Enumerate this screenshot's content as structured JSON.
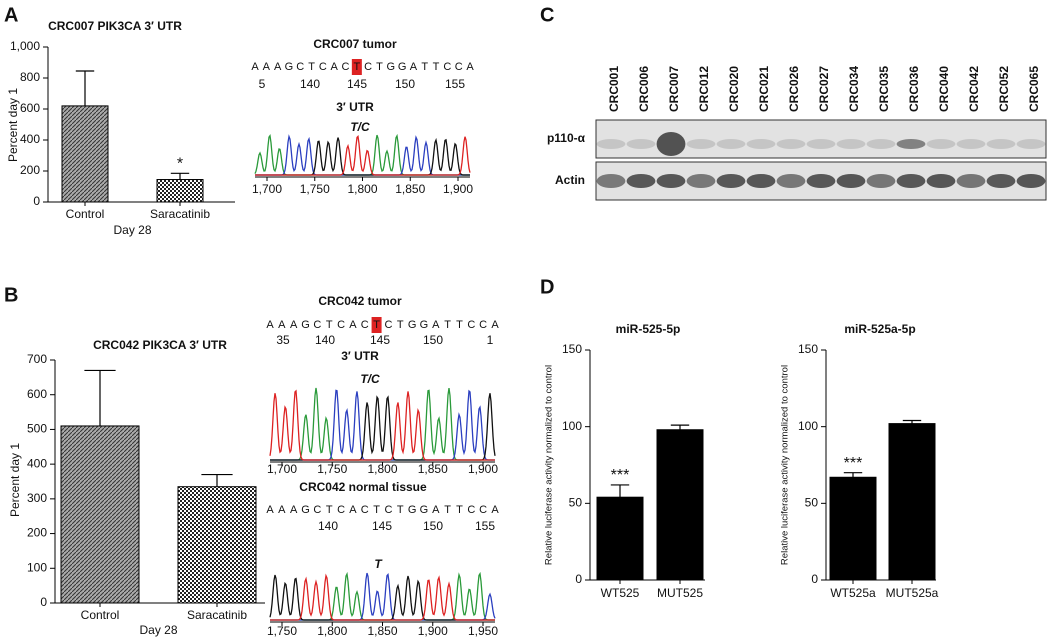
{
  "panels": [
    "A",
    "B",
    "C",
    "D"
  ],
  "chart_data": [
    {
      "type": "bar",
      "title": "CRC007 PIK3CA 3′ UTR",
      "y_label": "Percent day 1",
      "x_label": "Day 28",
      "categories": [
        "Control",
        "Saracatinib"
      ],
      "values": [
        620,
        145
      ],
      "errors": [
        225,
        40
      ],
      "color": "#000000",
      "annotation": "*",
      "ylim": [
        0,
        1000
      ],
      "yticks": [
        0,
        200,
        400,
        600,
        800,
        {
          "value": 1000,
          "label": "1,000"
        }
      ]
    },
    {
      "type": "bar",
      "title": "CRC042 PIK3CA 3′ UTR",
      "y_label": "Percent day 1",
      "x_label": "Day 28",
      "categories": [
        "Control",
        "Saracatinib"
      ],
      "values": [
        510,
        335
      ],
      "errors": [
        160,
        35
      ],
      "color": "#000000",
      "ylim": [
        0,
        700
      ],
      "yticks": [
        0,
        100,
        200,
        300,
        400,
        500,
        600,
        700
      ]
    },
    {
      "type": "bar",
      "title": "miR-525-5p",
      "y_label": "Relative luciferase activity normalized to control",
      "categories": [
        "WT525",
        "MUT525"
      ],
      "values": [
        54,
        98
      ],
      "errors": [
        8,
        3
      ],
      "color": "#000000",
      "annotation": "***",
      "ylim": [
        0,
        150
      ],
      "yticks": [
        0,
        50,
        100,
        150
      ]
    },
    {
      "type": "bar",
      "title": "miR-525a-5p",
      "y_label": "Relative luciferase activity normalized to control",
      "categories": [
        "WT525a",
        "MUT525a"
      ],
      "values": [
        67,
        102
      ],
      "errors": [
        3,
        2
      ],
      "color": "#000000",
      "annotation": "***",
      "ylim": [
        0,
        150
      ],
      "yticks": [
        0,
        50,
        100,
        150
      ]
    }
  ],
  "sequencing": [
    {
      "title": "CRC007 tumor",
      "bases": [
        "A",
        "A",
        "A",
        "G",
        "C",
        "T",
        "C",
        "A",
        "C",
        "T",
        "C",
        "T",
        "G",
        "G",
        "A",
        "T",
        "T",
        "C",
        "C",
        "A"
      ],
      "ruler": [
        5,
        140,
        145,
        150,
        155
      ],
      "trace_label": "3′ UTR",
      "call": "T/C",
      "axis": [
        {
          "value": 1700,
          "label": "1,700"
        },
        {
          "value": 1750,
          "label": "1,750"
        },
        {
          "value": 1800,
          "label": "1,800"
        },
        {
          "value": 1850,
          "label": "1,850"
        },
        {
          "value": 1900,
          "label": "1,900"
        }
      ]
    },
    {
      "title": "CRC042 tumor",
      "bases": [
        "A",
        "A",
        "A",
        "G",
        "C",
        "T",
        "C",
        "A",
        "C",
        "T",
        "C",
        "T",
        "G",
        "G",
        "A",
        "T",
        "T",
        "C",
        "C",
        "A"
      ],
      "ruler": [
        35,
        140,
        145,
        150,
        1
      ],
      "trace_label": "3′ UTR",
      "call": "T/C",
      "axis": [
        {
          "value": 1700,
          "label": "1,700"
        },
        {
          "value": 1750,
          "label": "1,750"
        },
        {
          "value": 1800,
          "label": "1,800"
        },
        {
          "value": 1850,
          "label": "1,850"
        },
        {
          "value": 1900,
          "label": "1,900"
        }
      ]
    },
    {
      "title": "CRC042 normal tissue",
      "bases": [
        "A",
        "A",
        "A",
        "G",
        "C",
        "T",
        "C",
        "A",
        "C",
        "T",
        "C",
        "T",
        "G",
        "G",
        "A",
        "T",
        "T",
        "C",
        "C",
        "A"
      ],
      "ruler": [
        140,
        145,
        150,
        155
      ],
      "call": "T",
      "axis": [
        {
          "value": 1750,
          "label": "1,750"
        },
        {
          "value": 1800,
          "label": "1,800"
        },
        {
          "value": 1850,
          "label": "1,850"
        },
        {
          "value": 1900,
          "label": "1,900"
        },
        {
          "value": 1950,
          "label": "1,950"
        }
      ]
    }
  ],
  "blot": {
    "lanes": [
      "CRC001",
      "CRC006",
      "CRC007",
      "CRC012",
      "CRC020",
      "CRC021",
      "CRC026",
      "CRC027",
      "CRC034",
      "CRC035",
      "CRC036",
      "CRC040",
      "CRC042",
      "CRC052",
      "CRC065"
    ],
    "rows": [
      "p110-α",
      "Actin"
    ]
  }
}
